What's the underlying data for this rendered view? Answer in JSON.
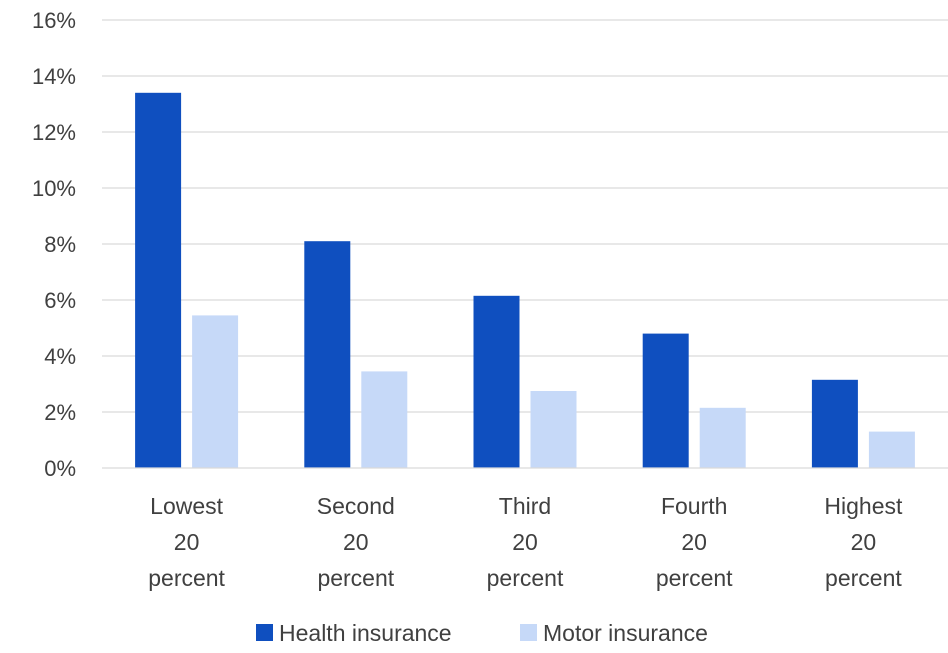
{
  "chart_data": {
    "type": "bar",
    "title": "",
    "xlabel": "",
    "ylabel": "",
    "ylim": [
      0,
      16
    ],
    "y_ticks": [
      "0%",
      "2%",
      "4%",
      "6%",
      "8%",
      "10%",
      "12%",
      "14%",
      "16%"
    ],
    "y_tick_values": [
      0,
      2,
      4,
      6,
      8,
      10,
      12,
      14,
      16
    ],
    "grid": true,
    "legend_position": "bottom",
    "categories": [
      [
        "Lowest",
        "20",
        "percent"
      ],
      [
        "Second",
        "20",
        "percent"
      ],
      [
        "Third",
        "20",
        "percent"
      ],
      [
        "Fourth",
        "20",
        "percent"
      ],
      [
        "Highest",
        "20",
        "percent"
      ]
    ],
    "series": [
      {
        "name": "Health insurance",
        "color": "#0f4fbf",
        "values": [
          13.4,
          8.1,
          6.15,
          4.8,
          3.15
        ]
      },
      {
        "name": "Motor insurance",
        "color": "#c6d9f8",
        "values": [
          5.45,
          3.45,
          2.75,
          2.15,
          1.3
        ]
      }
    ]
  }
}
